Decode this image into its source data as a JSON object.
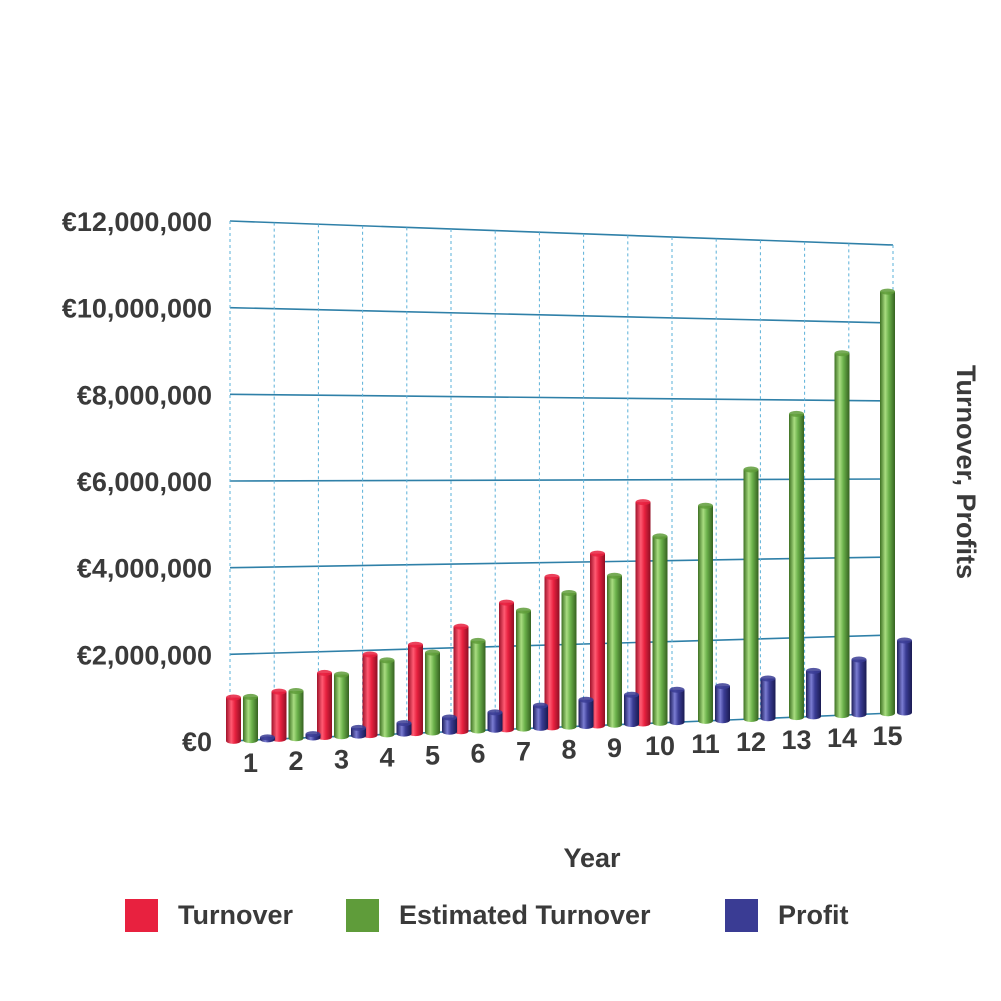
{
  "chart_data": {
    "type": "bar",
    "title": "",
    "xlabel": "Year",
    "ylabel": "Turnover, Profits",
    "ylim": [
      0,
      12000000
    ],
    "yticks": [
      {
        "value": 0,
        "label": "€0"
      },
      {
        "value": 2000000,
        "label": "€2,000,000"
      },
      {
        "value": 4000000,
        "label": "€4,000,000"
      },
      {
        "value": 6000000,
        "label": "€6,000,000"
      },
      {
        "value": 8000000,
        "label": "€8,000,000"
      },
      {
        "value": 10000000,
        "label": "€10,000,000"
      },
      {
        "value": 12000000,
        "label": "€12,000,000"
      }
    ],
    "categories": [
      "1",
      "2",
      "3",
      "4",
      "5",
      "6",
      "7",
      "8",
      "9",
      "10",
      "11",
      "12",
      "13",
      "14",
      "15"
    ],
    "series": [
      {
        "name": "Turnover",
        "color": "#e8213f",
        "values": [
          1000000,
          1100000,
          1500000,
          1900000,
          2100000,
          2500000,
          3050000,
          3650000,
          4200000,
          5450000,
          null,
          null,
          null,
          null,
          null
        ]
      },
      {
        "name": "Estimated Turnover",
        "color": "#5f9c3a",
        "values": [
          1000000,
          1100000,
          1450000,
          1750000,
          1900000,
          2150000,
          2850000,
          3250000,
          3650000,
          4600000,
          5350000,
          6250000,
          7650000,
          9200000,
          10800000
        ]
      },
      {
        "name": "Profit",
        "color": "#3a3c94",
        "values": [
          20000,
          80000,
          180000,
          250000,
          340000,
          420000,
          540000,
          640000,
          720000,
          800000,
          850000,
          1000000,
          1150000,
          1400000,
          1850000
        ]
      }
    ],
    "legend_position": "bottom",
    "grid": true
  },
  "legend": {
    "items": [
      {
        "label": "Turnover",
        "color": "#e8213f"
      },
      {
        "label": "Estimated Turnover",
        "color": "#5f9c3a"
      },
      {
        "label": "Profit",
        "color": "#3a3c94"
      }
    ]
  }
}
